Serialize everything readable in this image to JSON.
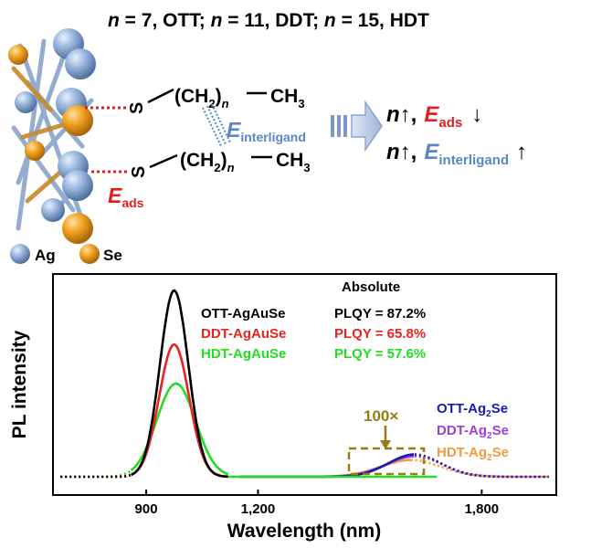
{
  "header": {
    "n1": "n",
    "v1": " = 7, OTT; ",
    "n2": "n",
    "v2": " = 11, DDT; ",
    "n3": "n",
    "v3": " = 15, HDT"
  },
  "scheme": {
    "s1": "S",
    "s2": "S",
    "ch2_open": "(CH",
    "ch2_sub": "2",
    "ch2_close": ")",
    "n": "n",
    "ch3": "CH",
    "ch3_sub": "3",
    "e_interligand_E": "E",
    "e_interligand_sub": "interligand",
    "e_ads_E": "E",
    "e_ads_sub": "ads",
    "legend_ag": "Ag",
    "legend_se": "Se"
  },
  "trends": {
    "line1": {
      "n": "n",
      "n_arrow": "↑",
      "comma": ",",
      "E": "E",
      "sub": "ads",
      "arrow": "↓"
    },
    "line2": {
      "n": "n",
      "n_arrow": "↑",
      "comma": ",",
      "E": "E",
      "sub": "interligand",
      "arrow": "↑"
    }
  },
  "chart_data": {
    "type": "line",
    "xlabel": "Wavelength (nm)",
    "ylabel": "PL intensity",
    "xlim": [
      650,
      2000
    ],
    "ylim": [
      0,
      1.05
    ],
    "xticks": [
      900,
      1200,
      1800
    ],
    "xtick_labels": [
      "900",
      "1,200",
      "1,800"
    ],
    "colors": {
      "ott": "#000000",
      "ddt": "#e8241e",
      "hdt": "#22dd22",
      "ott_se": "#1a1ab0",
      "ddt_se": "#9b3fd6",
      "hdt_se": "#f39a3c",
      "box": "#9a7a14"
    },
    "series": [
      {
        "name": "OTT-AgAuSe",
        "peak": 975,
        "width": 38,
        "height": 1.0
      },
      {
        "name": "DDT-AgAuSe",
        "peak": 975,
        "width": 40,
        "height": 0.71
      },
      {
        "name": "HDT-AgAuSe",
        "peak": 980,
        "width": 52,
        "height": 0.5
      },
      {
        "name": "OTT-Ag2Se",
        "peak": 1620,
        "width": 70,
        "height": 0.12
      },
      {
        "name": "DDT-Ag2Se",
        "peak": 1620,
        "width": 75,
        "height": 0.11
      },
      {
        "name": "HDT-Ag2Se",
        "peak": 1610,
        "width": 80,
        "height": 0.09
      }
    ],
    "legend": {
      "ott": "OTT-AgAuSe",
      "ddt": "DDT-AgAuSe",
      "hdt": "HDT-AgAuSe",
      "ott_se_base": "OTT-Ag",
      "ott_se_sub": "2",
      "ott_se_end": "Se",
      "ddt_se_base": "DDT-Ag",
      "ddt_se_sub": "2",
      "ddt_se_end": "Se",
      "hdt_se_base": "HDT-Ag",
      "hdt_se_sub": "2",
      "hdt_se_end": "Se"
    },
    "annotations": {
      "absolute": "Absolute",
      "plqy_ott": "PLQY = 87.2%",
      "plqy_ddt": "PLQY = 65.8%",
      "plqy_hdt": "PLQY = 57.6%",
      "magnify": "100×"
    }
  }
}
